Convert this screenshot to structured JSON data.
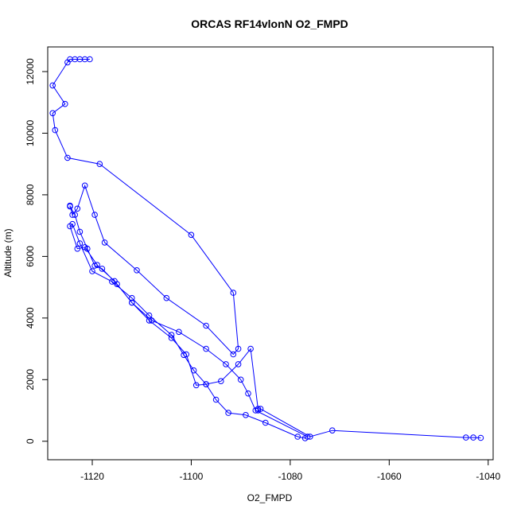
{
  "chart_data": {
    "type": "line",
    "title": "ORCAS RF14vlonN O2_FMPD",
    "xlabel": "O2_FMPD",
    "ylabel": "Altitude (m)",
    "xlim": [
      -1129,
      -1039
    ],
    "ylim": [
      -600,
      12800
    ],
    "x_ticks": [
      -1120,
      -1100,
      -1080,
      -1060,
      -1040
    ],
    "y_ticks": [
      0,
      2000,
      4000,
      6000,
      8000,
      10000,
      12000
    ],
    "grid": false,
    "series": [
      {
        "color": "#0000ff",
        "marker": "open-circle",
        "x": [
          -1120.5,
          -1121.5,
          -1122.5,
          -1123.5,
          -1124.5,
          -1125,
          -1128,
          -1125.5,
          -1128,
          -1127.5,
          -1125,
          -1118.5,
          -1100,
          -1091.5,
          -1090.5,
          -1091.5,
          -1097,
          -1105,
          -1111,
          -1117.5,
          -1119.5,
          -1121.5,
          -1123,
          -1124,
          -1124.5,
          -1124.5,
          -1123.5,
          -1122.5,
          -1121,
          -1119.5,
          -1118,
          -1115,
          -1112,
          -1108,
          -1102.5,
          -1097,
          -1093,
          -1090,
          -1088.5,
          -1087,
          -1076.5,
          -1077,
          -1078.5,
          -1085,
          -1089,
          -1092.5,
          -1095,
          -1097,
          -1099.5,
          -1101.5,
          -1104,
          -1108.5,
          -1112,
          -1116,
          -1120,
          -1122.5,
          -1124,
          -1124.5,
          -1123,
          -1121.5,
          -1119,
          -1115.5,
          -1112,
          -1108.5,
          -1104,
          -1101,
          -1099,
          -1097,
          -1094,
          -1090.5,
          -1088,
          -1086.5,
          -1086.5,
          -1086,
          -1076,
          -1071.5,
          -1044.5,
          -1043,
          -1041.5
        ],
        "y": [
          12400,
          12400,
          12400,
          12400,
          12400,
          12300,
          11550,
          10950,
          10650,
          10100,
          9200,
          9000,
          6700,
          4820,
          3000,
          2820,
          3750,
          4650,
          5550,
          6450,
          7350,
          8300,
          7550,
          7350,
          7650,
          7620,
          7350,
          6800,
          6250,
          5700,
          5600,
          5100,
          4500,
          3920,
          3550,
          3000,
          2500,
          2000,
          1550,
          1000,
          150,
          100,
          150,
          600,
          850,
          920,
          1350,
          1850,
          2300,
          2800,
          3450,
          4080,
          4650,
          5180,
          5520,
          6420,
          7050,
          6980,
          6250,
          6300,
          5720,
          5200,
          4500,
          3920,
          3350,
          2820,
          1820,
          1850,
          1950,
          2500,
          3000,
          1050,
          1000,
          1050,
          150,
          350,
          120,
          120,
          110
        ]
      }
    ]
  }
}
